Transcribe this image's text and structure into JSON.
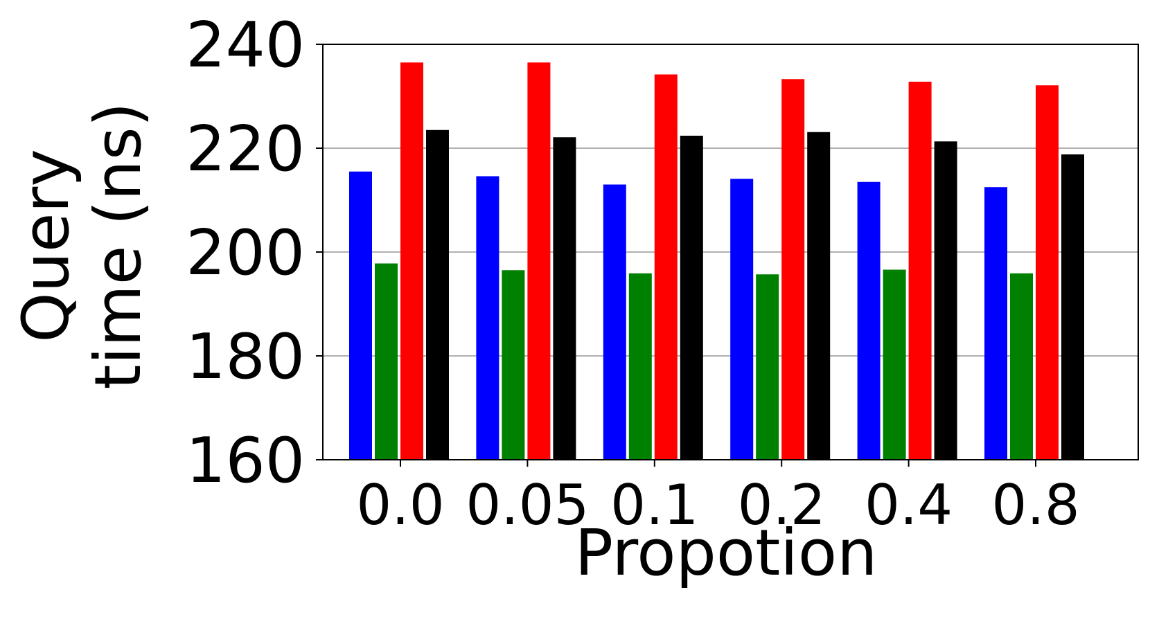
{
  "chart_data": {
    "type": "bar",
    "xlabel": "Propotion",
    "ylabel_lines": [
      "Query",
      "time (ns)"
    ],
    "categories": [
      "0.0",
      "0.05",
      "0.1",
      "0.2",
      "0.4",
      "0.8"
    ],
    "series": [
      {
        "color": "#0000ff",
        "values": [
          215.5,
          214.6,
          213.0,
          214.1,
          213.5,
          212.5
        ]
      },
      {
        "color": "#008000",
        "values": [
          197.8,
          196.5,
          195.9,
          195.7,
          196.6,
          195.9
        ]
      },
      {
        "color": "#ff0000",
        "values": [
          236.5,
          236.5,
          234.2,
          233.3,
          232.8,
          232.1
        ]
      },
      {
        "color": "#000000",
        "values": [
          223.5,
          222.1,
          222.4,
          223.1,
          221.3,
          218.8
        ]
      }
    ],
    "ylim": [
      160,
      240
    ],
    "yticks": [
      160,
      180,
      200,
      220,
      240
    ],
    "grid": "y"
  }
}
